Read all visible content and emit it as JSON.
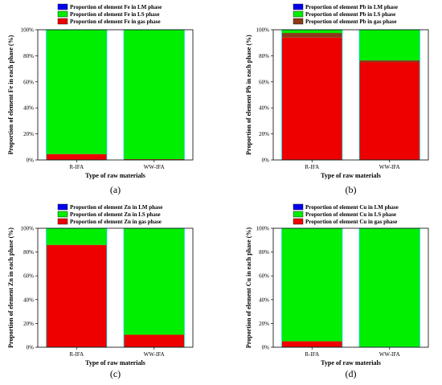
{
  "colors": {
    "lm": "#0000ee",
    "ls": "#00ee00",
    "gas": "#ee0000",
    "gas_pb": "#8b3a1a",
    "panel_bg": "#ffffff",
    "axis": "#000000",
    "bar_edge": "#00d8d8"
  },
  "chart_data": [
    {
      "type": "bar",
      "stacked": true,
      "caption": "(a)",
      "xlabel": "Type of raw materials",
      "ylabel": "Proportion of element Fe in each phase (%)",
      "categories": [
        "R-IFA",
        "WW-IFA"
      ],
      "ylim": [
        0,
        100
      ],
      "yticks": [
        "0%",
        "20%",
        "40%",
        "60%",
        "80%",
        "100%"
      ],
      "legend_position": "top",
      "series": [
        {
          "name": "Proportion of element Fe in LM phase",
          "color_key": "lm",
          "values": [
            0,
            0
          ]
        },
        {
          "name": "Proportion of element Fe in LS phase",
          "color_key": "ls",
          "values": [
            95.5,
            99.4
          ]
        },
        {
          "name": "Proportion of element Fe in gas phase",
          "color_key": "gas",
          "values": [
            4.5,
            0.6
          ]
        }
      ]
    },
    {
      "type": "bar",
      "stacked": true,
      "caption": "(b)",
      "xlabel": "Type of raw materials",
      "ylabel": "Proportion of element Pb in each phase (%)",
      "categories": [
        "R-IFA",
        "WW-IFA"
      ],
      "ylim": [
        0,
        100
      ],
      "yticks": [
        "0%",
        "20%",
        "40%",
        "60%",
        "80%",
        "100%"
      ],
      "legend_position": "top",
      "series": [
        {
          "name": "Proportion of element Pb in LM phase",
          "color_key": "lm",
          "values": [
            0,
            0
          ]
        },
        {
          "name": "Proportion of element Pb in LS phase",
          "color_key": "ls",
          "values": [
            2.5,
            23.5
          ]
        },
        {
          "name": "Proportion of element Pb in gas phase",
          "color_key": "gas_pb",
          "values": [
            3.5,
            1.5
          ]
        },
        {
          "name": "",
          "color_key": "gas",
          "values": [
            94,
            75
          ]
        }
      ]
    },
    {
      "type": "bar",
      "stacked": true,
      "caption": "(c)",
      "xlabel": "Type of raw materials",
      "ylabel": "Proportion of element Zn in each phase (%)",
      "categories": [
        "R-IFA",
        "WW-IFA"
      ],
      "ylim": [
        0,
        100
      ],
      "yticks": [
        "0%",
        "20%",
        "40%",
        "60%",
        "80%",
        "100%"
      ],
      "legend_position": "top",
      "series": [
        {
          "name": "Proportion of element Zn in LM phase",
          "color_key": "lm",
          "values": [
            0,
            0
          ]
        },
        {
          "name": "Proportion of element Zn in LS phase",
          "color_key": "ls",
          "values": [
            14,
            89.5
          ]
        },
        {
          "name": "Proportion of element Zn in gas phase",
          "color_key": "gas",
          "values": [
            86,
            10.5
          ]
        }
      ]
    },
    {
      "type": "bar",
      "stacked": true,
      "caption": "(d)",
      "xlabel": "Type of raw materials",
      "ylabel": "Proportion of element Cu in each phase (%)",
      "categories": [
        "R-IFA",
        "WW-IFA"
      ],
      "ylim": [
        0,
        100
      ],
      "yticks": [
        "0%",
        "20%",
        "40%",
        "60%",
        "80%",
        "100%"
      ],
      "legend_position": "top",
      "series": [
        {
          "name": "Proportion of element Cu in LM phase",
          "color_key": "lm",
          "values": [
            0,
            0
          ]
        },
        {
          "name": "Proportion of element Cu in LS phase",
          "color_key": "ls",
          "values": [
            95,
            99.6
          ]
        },
        {
          "name": "Proportion of element Cu in gas phase",
          "color_key": "gas",
          "values": [
            5,
            0.4
          ]
        }
      ]
    }
  ]
}
